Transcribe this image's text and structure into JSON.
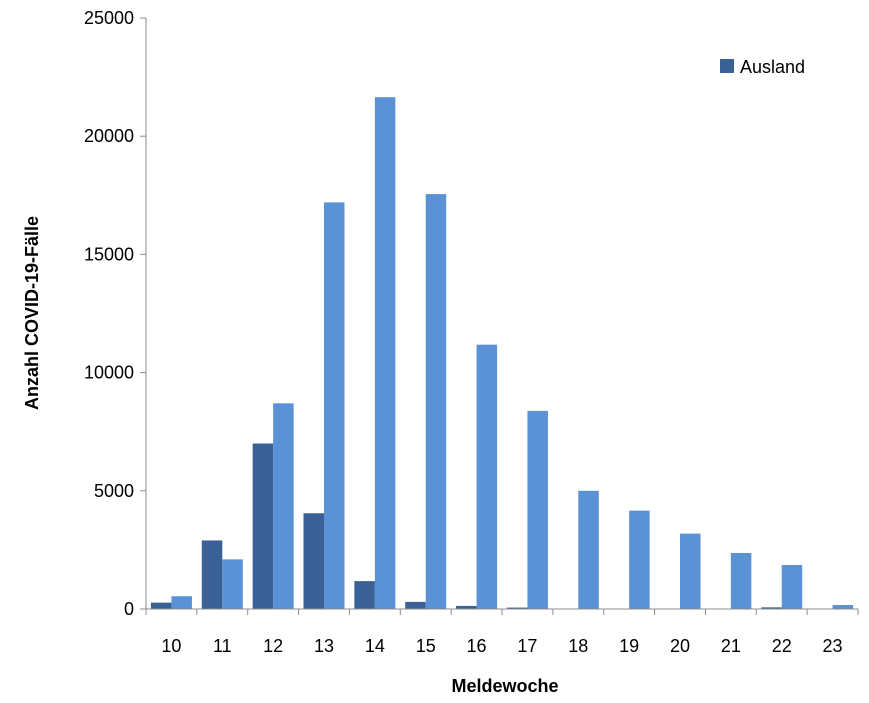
{
  "chart_data": {
    "type": "bar",
    "xlabel": "Meldewoche",
    "ylabel": "Anzahl COVID-19-Fälle",
    "ylim": [
      0,
      25000
    ],
    "yticks": [
      0,
      5000,
      10000,
      15000,
      20000,
      25000
    ],
    "categories": [
      "10",
      "11",
      "12",
      "13",
      "14",
      "15",
      "16",
      "17",
      "18",
      "19",
      "20",
      "21",
      "22",
      "23"
    ],
    "legend_position": "top-right",
    "grid": false,
    "series": [
      {
        "name": "Ausland",
        "color": "#3A6195",
        "values": [
          270,
          2900,
          7000,
          4050,
          1180,
          300,
          130,
          60,
          0,
          0,
          0,
          0,
          70,
          0
        ]
      },
      {
        "color": "#5B91D5",
        "values": [
          540,
          2100,
          8700,
          17200,
          21650,
          17550,
          11180,
          8380,
          5000,
          4160,
          3190,
          2370,
          1860,
          170
        ]
      }
    ]
  }
}
